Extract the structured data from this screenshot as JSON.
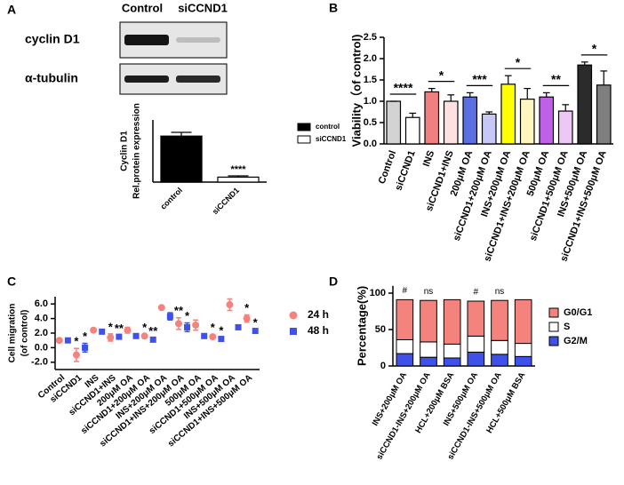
{
  "chart_data": [
    {
      "type": "blot",
      "panel": "A",
      "columns": [
        "Control",
        "siCCND1"
      ],
      "rows": [
        "cyclin D1",
        "α-tubulin"
      ]
    },
    {
      "type": "bar",
      "ylabel": [
        "Cyclin D1",
        "Rel.protein expression"
      ],
      "categories": [
        "control",
        "siCCND1"
      ],
      "values": [
        0.37,
        0.04
      ],
      "errors": [
        0.03,
        0.01
      ],
      "colors": [
        "#000000",
        "#ffffff"
      ],
      "ylim": [
        0,
        0.5
      ],
      "point_labels": [
        null,
        "****"
      ],
      "legend": true
    },
    {
      "type": "bar",
      "panel": "B",
      "ylabel": [
        "Viability（of control)"
      ],
      "categories": [
        "Control",
        "siCCND1",
        "INS",
        "siCCND1+INS",
        "200μM OA",
        "siCCND1+200μM OA",
        "INS+200μM OA",
        "siCCND1+INS+200μM OA",
        "500μM OA",
        "siCCND1+500μM OA",
        "INS+500μM OA",
        "siCCND1+INS+500μM OA"
      ],
      "values": [
        1.0,
        0.62,
        1.22,
        1.0,
        1.1,
        0.7,
        1.4,
        1.05,
        1.1,
        0.77,
        1.85,
        1.38
      ],
      "errors": [
        0,
        0.1,
        0.08,
        0.15,
        0.1,
        0.05,
        0.2,
        0.25,
        0.1,
        0.15,
        0.07,
        0.33
      ],
      "colors": [
        "#d3d3d3",
        "#ffffff",
        "#f08080",
        "#fde0e0",
        "#5a6fe0",
        "#c8c8f8",
        "#ffff00",
        "#fff6c0",
        "#c060e8",
        "#ecc8f4",
        "#2b2b2b",
        "#7f7f7f"
      ],
      "ylim": [
        0,
        2.5
      ],
      "yticks": [
        {
          "value": 0,
          "label": "0.0"
        },
        0.5,
        {
          "value": 1,
          "label": "1.0"
        },
        1.5,
        {
          "value": 2,
          "label": "2.0"
        },
        2.5
      ],
      "pair_labels": [
        "****",
        "*",
        "***",
        "*",
        "**",
        "*"
      ]
    },
    {
      "type": "scatter",
      "panel": "C",
      "ylabel": [
        "Cell migration",
        "(of control)"
      ],
      "categories": [
        "Control",
        "siCCND1",
        "INS",
        "siCCND1+INS",
        "200μM OA",
        "siCCND1+200μM OA",
        "INS+200μM OA",
        "siCCND1+INS+200μM OA",
        "500μM OA",
        "siCCND1+500μM OA",
        "INS+500μM OA",
        "siCCND1+INS+500μM OA"
      ],
      "ylim": [
        -3,
        7
      ],
      "yticks": [
        {
          "value": -2,
          "label": "-2.0"
        },
        {
          "value": 0,
          "label": "0.0"
        },
        {
          "value": 2,
          "label": "2.0"
        },
        {
          "value": 4,
          "label": "4.0"
        },
        {
          "value": 6,
          "label": "6.0"
        }
      ],
      "series": [
        {
          "name": "24 h",
          "color": "#f4837d",
          "marker": "circle",
          "values": [
            1.0,
            -1.0,
            2.4,
            1.4,
            2.4,
            1.6,
            5.5,
            3.3,
            3.1,
            1.5,
            5.9,
            4.0
          ],
          "errors": [
            0,
            0.9,
            0.1,
            0.5,
            0.4,
            0.2,
            0.1,
            0.8,
            0.7,
            0.3,
            0.8,
            0.5
          ],
          "point_labels": [
            null,
            "*",
            null,
            "*",
            null,
            "*",
            null,
            "**",
            null,
            "*",
            null,
            "*"
          ]
        },
        {
          "name": "48 h",
          "color": "#3f51e8",
          "marker": "square",
          "values": [
            1.0,
            0.0,
            2.2,
            1.5,
            1.6,
            1.1,
            4.3,
            2.8,
            1.6,
            1.2,
            2.8,
            2.3
          ],
          "errors": [
            0,
            0.6,
            0.1,
            0.2,
            0.2,
            0.2,
            0.5,
            0.6,
            0.2,
            0.2,
            0.2,
            0.2
          ],
          "point_labels": [
            null,
            "*",
            null,
            "**",
            null,
            "**",
            null,
            "*",
            null,
            "*",
            null,
            "*"
          ]
        }
      ],
      "legend": true
    },
    {
      "type": "stacked_bar",
      "panel": "D",
      "ylabel": [
        "Percentage(%)"
      ],
      "categories": [
        "INS+200μM OA",
        "siCCND1-INS+200μM OA",
        "HCL+200μM BSA",
        "INS+500μM OA",
        "siCCND1-INS+500μM OA",
        "HCL+500μM BSA"
      ],
      "ylim": [
        0,
        110
      ],
      "yticks": [
        0,
        50,
        100
      ],
      "series": [
        {
          "name": "G2/M",
          "color": "#3f51e8",
          "values": [
            17,
            12,
            11,
            19,
            16,
            13
          ]
        },
        {
          "name": "S",
          "color": "#ffffff",
          "values": [
            19,
            21,
            19,
            22,
            19,
            18
          ]
        },
        {
          "name": "G0/G1",
          "color": "#f4837d",
          "values": [
            55,
            57,
            61,
            48,
            55,
            60
          ]
        }
      ],
      "top_labels": [
        "#",
        "ns",
        null,
        "#",
        "ns",
        null
      ],
      "legend": true
    }
  ]
}
